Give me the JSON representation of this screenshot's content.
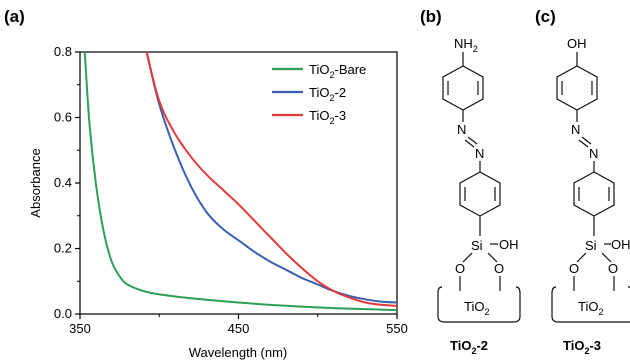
{
  "panels": [
    "(a)",
    "(b)",
    "(c)"
  ],
  "chart_data": {
    "type": "line",
    "xlabel": "Wavelength (nm)",
    "ylabel": "Absorbance",
    "xlim": [
      350,
      550
    ],
    "ylim": [
      0.0,
      0.8
    ],
    "xticks": [
      "350",
      "450",
      "550"
    ],
    "yticks": [
      "0.0",
      "0.2",
      "0.4",
      "0.6",
      "0.8"
    ],
    "legend_position": "top-right",
    "series": [
      {
        "name": "TiO2-Bare",
        "color": "#2e9e5b",
        "x": [
          353,
          356,
          360,
          365,
          370,
          375,
          380,
          390,
          400,
          420,
          450,
          480,
          510,
          550
        ],
        "y": [
          0.8,
          0.58,
          0.4,
          0.25,
          0.16,
          0.115,
          0.09,
          0.07,
          0.06,
          0.048,
          0.035,
          0.025,
          0.018,
          0.012
        ]
      },
      {
        "name": "TiO2-2",
        "color": "#3a5fb0",
        "x": [
          392,
          400,
          410,
          420,
          430,
          440,
          450,
          460,
          470,
          480,
          490,
          500,
          510,
          520,
          530,
          540,
          550
        ],
        "y": [
          0.8,
          0.64,
          0.5,
          0.39,
          0.31,
          0.26,
          0.225,
          0.19,
          0.16,
          0.135,
          0.11,
          0.09,
          0.07,
          0.055,
          0.045,
          0.038,
          0.035
        ]
      },
      {
        "name": "TiO2-3",
        "color": "#e03a3a",
        "x": [
          392,
          400,
          410,
          420,
          430,
          440,
          450,
          460,
          470,
          480,
          490,
          500,
          510,
          520,
          530,
          540,
          550
        ],
        "y": [
          0.8,
          0.65,
          0.55,
          0.48,
          0.425,
          0.38,
          0.335,
          0.285,
          0.235,
          0.185,
          0.14,
          0.1,
          0.07,
          0.05,
          0.035,
          0.028,
          0.025
        ]
      }
    ]
  },
  "legend": [
    {
      "base": "TiO",
      "sub": "2",
      "tail": "-Bare"
    },
    {
      "base": "TiO",
      "sub": "2",
      "tail": "-2"
    },
    {
      "base": "TiO",
      "sub": "2",
      "tail": "-3"
    }
  ],
  "structures": {
    "b": {
      "top_group": "NH",
      "top_sub": "2",
      "caption_base": "TiO",
      "caption_sub": "2",
      "caption_tail": "-2"
    },
    "c": {
      "top_group": "OH",
      "caption_base": "TiO",
      "caption_sub": "2",
      "caption_tail": "-3"
    },
    "atom_n": "N",
    "atom_si": "Si",
    "atom_o": "O",
    "silanol": "OH",
    "support_base": "TiO",
    "support_sub": "2"
  }
}
